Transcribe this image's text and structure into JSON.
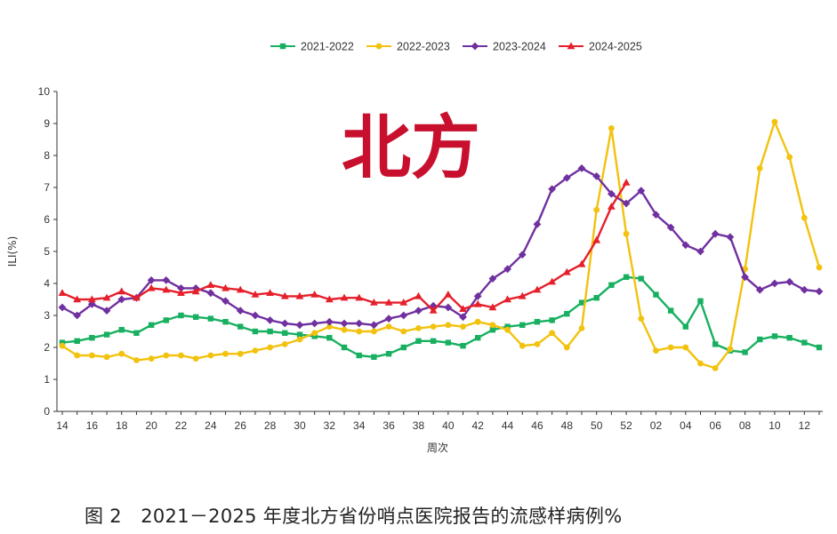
{
  "chart_data": {
    "type": "line",
    "region_label": "北方",
    "caption": "图 2　2021－2025 年度北方省份哨点医院报告的流感样病例%",
    "xlabel": "周次",
    "ylabel": "ILI(%)",
    "ylim": [
      0,
      10
    ],
    "y_ticks": [
      "0",
      "1",
      "2",
      "3",
      "4",
      "5",
      "6",
      "7",
      "8",
      "9",
      "10"
    ],
    "weeks": [
      "14",
      "15",
      "16",
      "17",
      "18",
      "19",
      "20",
      "21",
      "22",
      "23",
      "24",
      "25",
      "26",
      "27",
      "28",
      "29",
      "30",
      "31",
      "32",
      "33",
      "34",
      "35",
      "36",
      "37",
      "38",
      "39",
      "40",
      "41",
      "42",
      "43",
      "44",
      "45",
      "46",
      "47",
      "48",
      "49",
      "50",
      "51",
      "52",
      "01",
      "02",
      "03",
      "04",
      "05",
      "06",
      "07",
      "08",
      "09",
      "10",
      "11",
      "12",
      "13"
    ],
    "x_tick_labels": [
      "14",
      "16",
      "18",
      "20",
      "22",
      "24",
      "26",
      "28",
      "30",
      "32",
      "34",
      "36",
      "38",
      "40",
      "42",
      "44",
      "46",
      "48",
      "50",
      "52",
      "02",
      "04",
      "06",
      "08",
      "10",
      "12"
    ],
    "series": [
      {
        "name": "2021-2022",
        "color": "#18b060",
        "marker": "square",
        "values": [
          2.15,
          2.2,
          2.3,
          2.4,
          2.55,
          2.45,
          2.7,
          2.85,
          3.0,
          2.95,
          2.9,
          2.8,
          2.65,
          2.5,
          2.5,
          2.45,
          2.4,
          2.35,
          2.3,
          2.0,
          1.75,
          1.7,
          1.8,
          2.0,
          2.2,
          2.2,
          2.15,
          2.05,
          2.3,
          2.55,
          2.65,
          2.7,
          2.8,
          2.85,
          3.05,
          3.4,
          3.55,
          3.95,
          4.2,
          4.15,
          3.65,
          3.15,
          2.65,
          3.45,
          2.1,
          1.9,
          1.85,
          2.25,
          2.35,
          2.3,
          2.15,
          2.0
        ]
      },
      {
        "name": "2022-2023",
        "color": "#f2c20f",
        "marker": "circle",
        "values": [
          2.05,
          1.75,
          1.75,
          1.7,
          1.8,
          1.6,
          1.65,
          1.75,
          1.75,
          1.65,
          1.75,
          1.8,
          1.8,
          1.9,
          2.0,
          2.1,
          2.25,
          2.45,
          2.65,
          2.55,
          2.5,
          2.5,
          2.65,
          2.5,
          2.6,
          2.65,
          2.7,
          2.65,
          2.8,
          2.7,
          2.55,
          2.05,
          2.1,
          2.45,
          2.0,
          2.6,
          6.3,
          8.85,
          5.55,
          2.9,
          1.9,
          2.0,
          2.0,
          1.5,
          1.35,
          1.95,
          4.45,
          7.6,
          9.05,
          7.95,
          6.05,
          4.5
        ]
      },
      {
        "name": "2023-2024",
        "color": "#7030a0",
        "marker": "diamond",
        "values": [
          3.25,
          3.0,
          3.35,
          3.15,
          3.5,
          3.55,
          4.1,
          4.1,
          3.85,
          3.85,
          3.7,
          3.45,
          3.15,
          3.0,
          2.85,
          2.75,
          2.7,
          2.75,
          2.8,
          2.75,
          2.75,
          2.7,
          2.9,
          3.0,
          3.15,
          3.3,
          3.25,
          2.95,
          3.6,
          4.15,
          4.45,
          4.9,
          5.85,
          6.95,
          7.3,
          7.6,
          7.35,
          6.8,
          6.5,
          6.9,
          6.15,
          5.75,
          5.2,
          5.0,
          5.55,
          5.45,
          4.2,
          3.8,
          4.0,
          4.05,
          3.8,
          3.75
        ]
      },
      {
        "name": "2024-2025",
        "color": "#e5202b",
        "marker": "triangle",
        "values": [
          3.7,
          3.5,
          3.5,
          3.55,
          3.75,
          3.55,
          3.85,
          3.8,
          3.7,
          3.75,
          3.95,
          3.85,
          3.8,
          3.65,
          3.7,
          3.6,
          3.6,
          3.65,
          3.5,
          3.55,
          3.55,
          3.4,
          3.4,
          3.4,
          3.6,
          3.15,
          3.65,
          3.2,
          3.35,
          3.25,
          3.5,
          3.6,
          3.8,
          4.05,
          4.35,
          4.6,
          5.35,
          6.4,
          7.15
        ]
      }
    ]
  }
}
